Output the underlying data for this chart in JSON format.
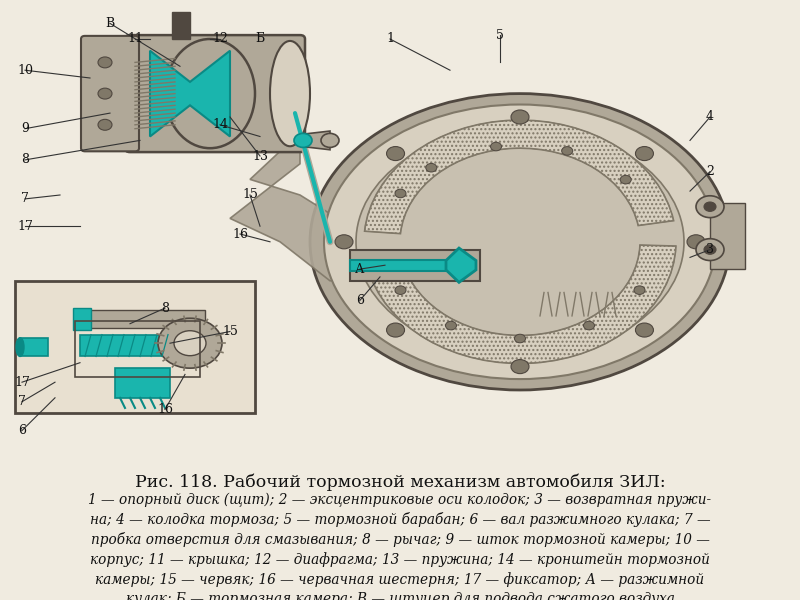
{
  "title": "Рис. 118. Рабочий тормозной механизм автомобиля ЗИЛ:",
  "caption_lines": [
    "1 — опорный диск (щит); 2 — эксцентриковые оси колодок; 3 — возвратная пружи-",
    "на; 4 — колодка тормоза; 5 — тормозной барабан; 6 — вал разжимного кулака; 7 —",
    "пробка отверстия для смазывания; 8 — рычаг; 9 — шток тормозной камеры; 10 —",
    "корпус; 11 — крышка; 12 — диафрагма; 13 — пружина; 14 — кронштейн тормозной",
    "камеры; 15 — червяк; 16 — червачная шестерня; 17 — фиксатор; А — разжимной",
    "кулак; Б — тормозная камера; В — штуцер для подвода сжатого воздуха"
  ],
  "bg_color": "#f0ebe0",
  "title_fontsize": 12.5,
  "caption_fontsize": 9.8,
  "figsize": [
    8.0,
    6.0
  ],
  "dpi": 100,
  "teal": "#1ab5ad",
  "teal_dark": "#0a8a85",
  "gray_light": "#d8d0c0",
  "gray_mid": "#b0a898",
  "gray_dark": "#807868",
  "gray_darker": "#504840",
  "white_ish": "#e8e0d0",
  "drum_bg": "#c8c0b0"
}
